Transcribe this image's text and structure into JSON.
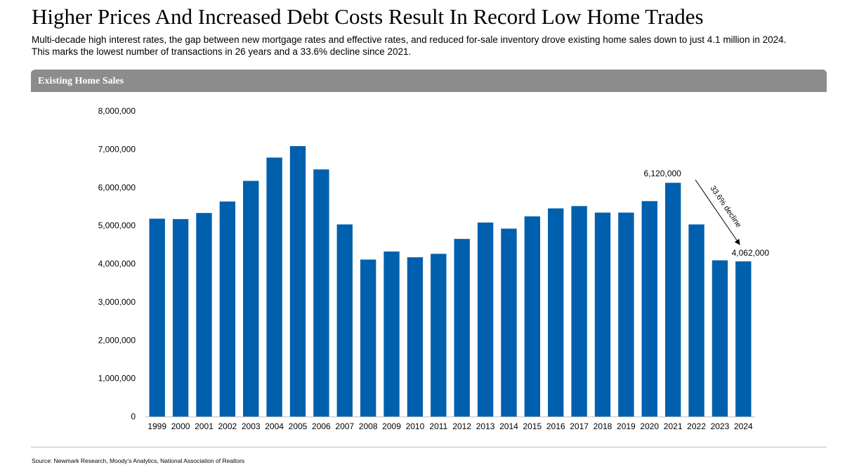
{
  "header": {
    "title": "Higher Prices And Increased Debt Costs Result In Record Low Home Trades",
    "subtitle_line1": "Multi-decade high interest rates, the gap between new mortgage rates and effective rates, and reduced for-sale inventory drove existing home sales down to just 4.1 million in 2024.",
    "subtitle_line2": "This marks the lowest number of transactions in 26 years and a 33.6% decline since 2021."
  },
  "panel": {
    "title": "Existing Home Sales"
  },
  "chart_data": {
    "type": "bar",
    "title": "Existing Home Sales",
    "categories": [
      "1999",
      "2000",
      "2001",
      "2002",
      "2003",
      "2004",
      "2005",
      "2006",
      "2007",
      "2008",
      "2009",
      "2010",
      "2011",
      "2012",
      "2013",
      "2014",
      "2015",
      "2016",
      "2017",
      "2018",
      "2019",
      "2020",
      "2021",
      "2022",
      "2023",
      "2024"
    ],
    "values": [
      5180000,
      5170000,
      5330000,
      5630000,
      6170000,
      6780000,
      7080000,
      6470000,
      5030000,
      4110000,
      4320000,
      4170000,
      4260000,
      4650000,
      5080000,
      4920000,
      5240000,
      5450000,
      5510000,
      5340000,
      5340000,
      5640000,
      6120000,
      5030000,
      4090000,
      4062000
    ],
    "ylim": [
      0,
      8000000
    ],
    "yticks": [
      0,
      1000000,
      2000000,
      3000000,
      4000000,
      5000000,
      6000000,
      7000000,
      8000000
    ],
    "ytick_labels": [
      "0",
      "1,000,000",
      "2,000,000",
      "3,000,000",
      "4,000,000",
      "5,000,000",
      "6,000,000",
      "7,000,000",
      "8,000,000"
    ],
    "bar_color": "#0060ae",
    "grid": false,
    "annotations": {
      "label_2021": "6,120,000",
      "label_2024": "4,062,000",
      "decline_text": "33.6% decline"
    }
  },
  "footer": {
    "source": "Source: Newmark Research, Moody’s Analytics, National Association of Realtors"
  }
}
